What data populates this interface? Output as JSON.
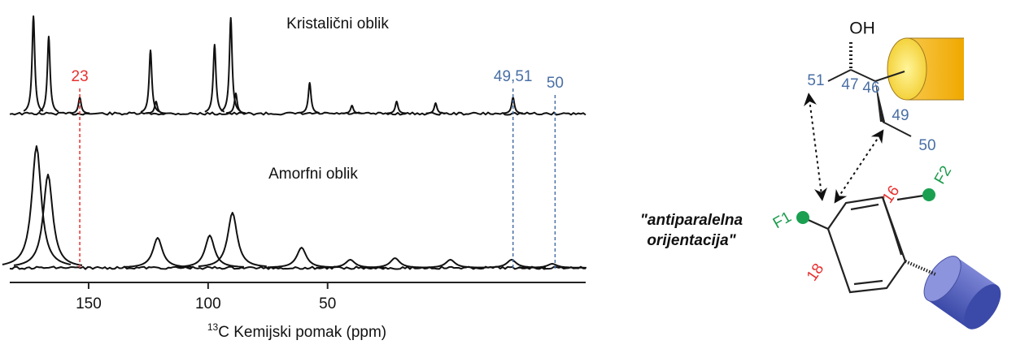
{
  "chart_data": {
    "type": "spectrum",
    "xlabel": {
      "sup": "13",
      "text": "C Kemijski pomak (ppm)"
    },
    "xlim": [
      183,
      -58
    ],
    "xticks": [
      150,
      100,
      50
    ],
    "series": [
      {
        "name": "Kristalični oblik",
        "color": "#111111",
        "x": [
          173.1,
          166.7,
          153.7,
          124.1,
          121.8,
          97.3,
          90.5,
          88.4,
          57.5,
          39.8,
          21.1,
          4.8,
          -27.6
        ],
        "values": [
          120,
          95,
          20,
          78,
          15,
          85,
          118,
          25,
          38,
          10,
          15,
          13,
          20
        ]
      },
      {
        "name": "Amorfni oblik",
        "color": "#111111",
        "x": [
          171.8,
          167.0,
          121.1,
          99.3,
          89.8,
          60.9,
          40.5,
          21.8,
          -1.4,
          -27.0,
          -44.0
        ],
        "values": [
          150,
          115,
          37,
          40,
          68,
          25,
          10,
          12,
          10,
          10,
          5
        ]
      }
    ],
    "annotations": [
      {
        "label": "23",
        "x": 153.7,
        "color": "#e8302f"
      },
      {
        "label": "49,51",
        "x": -27.6,
        "color": "#4a6fa5"
      },
      {
        "label": "50",
        "x": -45.2,
        "color": "#4a6fa5"
      }
    ]
  },
  "molecule": {
    "hydroxyl": "OH",
    "atoms": [
      {
        "label": "51",
        "color": "#4a6fa5"
      },
      {
        "label": "47",
        "color": "#4a6fa5"
      },
      {
        "label": "46",
        "color": "#4a6fa5"
      },
      {
        "label": "49",
        "color": "#4a6fa5"
      },
      {
        "label": "50",
        "color": "#4a6fa5"
      },
      {
        "label": "16",
        "color": "#e8302f"
      },
      {
        "label": "18",
        "color": "#e8302f"
      },
      {
        "label": "F1",
        "color": "#1a9a4a"
      },
      {
        "label": "F2",
        "color": "#1a9a4a"
      }
    ],
    "caption": [
      "\"antiparalelna",
      "orijentacija\""
    ]
  }
}
